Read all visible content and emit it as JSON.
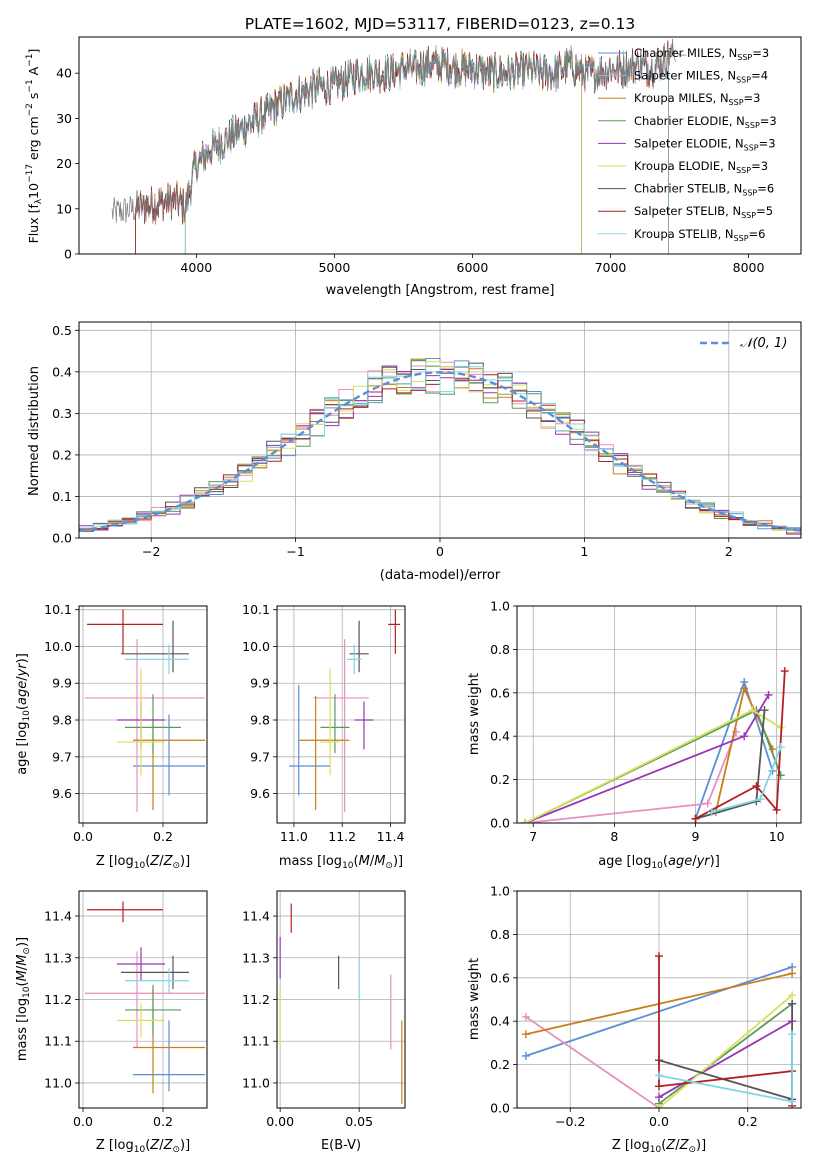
{
  "colors": {
    "chabrier_miles": "#5b8fd8",
    "salpeter_miles": "#e98fc2",
    "kroupa_miles": "#c87f1a",
    "chabrier_elodie": "#5c9a5c",
    "salpeter_elodie": "#9a35b4",
    "kroupa_elodie": "#d8e05a",
    "chabrier_stelib": "#555555",
    "salpeter_stelib": "#b22020",
    "kroupa_stelib": "#7fd6e6",
    "normal_curve": "#5b8fd8",
    "grid": "#b0b0b0"
  },
  "chart_data": [
    {
      "type": "line",
      "title": "PLATE=1602, MJD=53117, FIBERID=0123, z=0.13",
      "xlabel": "wavelength [Angstrom, rest frame]",
      "ylabel": "Flux [fλ10⁻¹⁷ erg cm⁻² s⁻¹ A⁻¹]",
      "xlim": [
        3150,
        8380
      ],
      "ylim": [
        0,
        48
      ],
      "xticks": [
        "4000",
        "5000",
        "6000",
        "7000",
        "8000"
      ],
      "yticks": [
        "0",
        "10",
        "20",
        "30",
        "40"
      ],
      "legend_position": "right",
      "legend": [
        "Chabrier MILES, N_SSP=3",
        "Salpeter MILES, N_SSP=4",
        "Kroupa MILES, N_SSP=3",
        "Chabrier ELODIE, N_SSP=3",
        "Salpeter ELODIE, N_SSP=3",
        "Kroupa ELODIE, N_SSP=3",
        "Chabrier STELIB, N_SSP=6",
        "Salpeter STELIB, N_SSP=5",
        "Kroupa STELIB, N_SSP=6"
      ],
      "continuum": {
        "x": [
          3390,
          3550,
          3700,
          3850,
          3920,
          3990,
          4100,
          4200,
          4300,
          4400,
          4500,
          4600,
          4700,
          4800,
          4900,
          5000,
          5100,
          5200,
          5300,
          5400,
          5500,
          5600,
          5700,
          5800,
          5900,
          6000,
          6100,
          6200,
          6300,
          6400,
          6500,
          6600,
          6700,
          6800,
          6900,
          7000,
          7100,
          7200,
          7300,
          7400,
          7470
        ],
        "y": [
          9,
          10,
          11,
          12,
          10,
          19,
          23,
          25,
          27,
          29,
          31,
          33,
          35,
          36,
          37,
          37,
          39,
          40,
          40,
          40,
          41,
          41,
          42,
          42,
          41,
          41,
          40,
          40,
          40,
          41,
          40,
          40,
          42,
          40,
          40,
          41,
          41,
          42,
          41,
          43,
          45
        ]
      },
      "model_range": {
        "x": [
          3550,
          7420
        ],
        "y_floor": 0
      },
      "data_extension": {
        "x": [
          7420,
          7470,
          7500,
          7550
        ],
        "y": [
          43,
          45,
          44,
          44
        ]
      }
    },
    {
      "type": "histogram",
      "xlabel": "(data-model)/error",
      "ylabel": "Normed distribution",
      "xlim": [
        -2.5,
        2.5
      ],
      "ylim": [
        0,
        0.52
      ],
      "xticks": [
        "−2",
        "−1",
        "0",
        "1",
        "2"
      ],
      "yticks": [
        "0.0",
        "0.1",
        "0.2",
        "0.3",
        "0.4",
        "0.5"
      ],
      "legend": [
        "𝒩(0, 1)"
      ],
      "legend_position": "top-right",
      "bin_width": 0.1
    },
    {
      "type": "errorbar",
      "xlabel": "Z [log₁₀(Z/Z⊙)]",
      "ylabel": "age  [log₁₀(age/yr)]",
      "xlim": [
        -0.01,
        0.31
      ],
      "ylim": [
        9.52,
        10.11
      ],
      "xticks": [
        "0.0",
        "0.2"
      ],
      "yticks": [
        "9.6",
        "9.7",
        "9.8",
        "9.9",
        "10.0",
        "10.1"
      ],
      "points": [
        {
          "series": "chabrier_miles",
          "x": 0.215,
          "y": 9.675,
          "xerr": [
            0.09,
            0.09
          ],
          "yerr": [
            0.08,
            0.14
          ]
        },
        {
          "series": "salpeter_miles",
          "x": 0.135,
          "y": 9.86,
          "xerr": [
            0.13,
            0.17
          ],
          "yerr": [
            0.31,
            0.16
          ]
        },
        {
          "series": "kroupa_miles",
          "x": 0.175,
          "y": 9.745,
          "xerr": [
            0.05,
            0.13
          ],
          "yerr": [
            0.19,
            0.06
          ]
        },
        {
          "series": "chabrier_elodie",
          "x": 0.175,
          "y": 9.78,
          "xerr": [
            0.07,
            0.07
          ],
          "yerr": [
            0.07,
            0.09
          ]
        },
        {
          "series": "salpeter_elodie",
          "x": 0.145,
          "y": 9.8,
          "xerr": [
            0.06,
            0.06
          ],
          "yerr": [
            0.08,
            0.05
          ]
        },
        {
          "series": "kroupa_elodie",
          "x": 0.145,
          "y": 9.74,
          "xerr": [
            0.06,
            0.06
          ],
          "yerr": [
            0.09,
            0.2
          ]
        },
        {
          "series": "chabrier_stelib",
          "x": 0.225,
          "y": 9.98,
          "xerr": [
            0.13,
            0.04
          ],
          "yerr": [
            0.05,
            0.09
          ]
        },
        {
          "series": "salpeter_stelib",
          "x": 0.1,
          "y": 10.06,
          "xerr": [
            0.09,
            0.1
          ],
          "yerr": [
            0.08,
            0.04
          ]
        },
        {
          "series": "kroupa_stelib",
          "x": 0.215,
          "y": 9.965,
          "xerr": [
            0.11,
            0.05
          ],
          "yerr": [
            0.04,
            0.04
          ]
        }
      ]
    },
    {
      "type": "errorbar",
      "xlabel": "mass [log₁₀(M/M⊙)]",
      "ylabel": "",
      "xlim": [
        10.93,
        11.46
      ],
      "ylim": [
        9.52,
        10.11
      ],
      "xticks": [
        "11.0",
        "11.2",
        "11.4"
      ],
      "yticks": [
        "9.6",
        "9.7",
        "9.8",
        "9.9",
        "10.0",
        "10.1"
      ],
      "points": [
        {
          "series": "chabrier_miles",
          "x": 11.02,
          "y": 9.675,
          "xerr": [
            0.04,
            0.13
          ],
          "yerr": [
            0.08,
            0.22
          ]
        },
        {
          "series": "salpeter_miles",
          "x": 11.21,
          "y": 9.86,
          "xerr": [
            0.13,
            0.1
          ],
          "yerr": [
            0.31,
            0.16
          ]
        },
        {
          "series": "kroupa_miles",
          "x": 11.09,
          "y": 9.745,
          "xerr": [
            0.07,
            0.14
          ],
          "yerr": [
            0.19,
            0.12
          ]
        },
        {
          "series": "chabrier_elodie",
          "x": 11.17,
          "y": 9.78,
          "xerr": [
            0.06,
            0.06
          ],
          "yerr": [
            0.07,
            0.09
          ]
        },
        {
          "series": "salpeter_elodie",
          "x": 11.29,
          "y": 9.8,
          "xerr": [
            0.04,
            0.04
          ],
          "yerr": [
            0.08,
            0.05
          ]
        },
        {
          "series": "kroupa_elodie",
          "x": 11.15,
          "y": 9.74,
          "xerr": [
            0.04,
            0.04
          ],
          "yerr": [
            0.09,
            0.2
          ]
        },
        {
          "series": "chabrier_stelib",
          "x": 11.27,
          "y": 9.98,
          "xerr": [
            0.04,
            0.04
          ],
          "yerr": [
            0.05,
            0.09
          ]
        },
        {
          "series": "salpeter_stelib",
          "x": 11.42,
          "y": 10.06,
          "xerr": [
            0.03,
            0.02
          ],
          "yerr": [
            0.08,
            0.04
          ]
        },
        {
          "series": "kroupa_stelib",
          "x": 11.25,
          "y": 9.965,
          "xerr": [
            0.03,
            0.03
          ],
          "yerr": [
            0.04,
            0.04
          ]
        }
      ]
    },
    {
      "type": "line",
      "xlabel": "age  [log₁₀(age/yr)]",
      "ylabel": "mass weight",
      "xlim": [
        6.8,
        10.3
      ],
      "ylim": [
        0,
        1
      ],
      "xticks": [
        "7",
        "8",
        "9",
        "10"
      ],
      "yticks": [
        "0.0",
        "0.2",
        "0.4",
        "0.6",
        "0.8",
        "1.0"
      ],
      "series": [
        {
          "key": "chabrier_miles",
          "x": [
            9.0,
            9.6,
            9.95
          ],
          "y": [
            0.02,
            0.65,
            0.24
          ]
        },
        {
          "key": "salpeter_miles",
          "x": [
            6.9,
            9.15,
            9.5
          ],
          "y": [
            0.0,
            0.09,
            0.42
          ]
        },
        {
          "key": "kroupa_miles",
          "x": [
            9.25,
            9.6,
            9.95
          ],
          "y": [
            0.05,
            0.62,
            0.34
          ]
        },
        {
          "key": "chabrier_elodie",
          "x": [
            6.9,
            9.75,
            10.05
          ],
          "y": [
            0.0,
            0.52,
            0.22
          ]
        },
        {
          "key": "salpeter_elodie",
          "x": [
            6.9,
            9.6,
            9.9
          ],
          "y": [
            0.0,
            0.4,
            0.59
          ]
        },
        {
          "key": "kroupa_elodie",
          "x": [
            6.9,
            9.7,
            10.05
          ],
          "y": [
            0.0,
            0.52,
            0.44
          ]
        },
        {
          "key": "chabrier_stelib",
          "x": [
            9.0,
            9.75,
            9.85
          ],
          "y": [
            0.02,
            0.1,
            0.52
          ]
        },
        {
          "key": "salpeter_stelib",
          "x": [
            9.0,
            9.75,
            10.0,
            10.1
          ],
          "y": [
            0.02,
            0.17,
            0.06,
            0.7
          ]
        },
        {
          "key": "kroupa_stelib",
          "x": [
            9.2,
            9.8,
            10.05
          ],
          "y": [
            0.05,
            0.11,
            0.35
          ]
        }
      ]
    },
    {
      "type": "errorbar",
      "xlabel": "Z [log₁₀(Z/Z⊙)]",
      "ylabel": "mass [log₁₀(M/M⊙)]",
      "xlim": [
        -0.01,
        0.31
      ],
      "ylim": [
        10.94,
        11.46
      ],
      "xticks": [
        "0.0",
        "0.2"
      ],
      "yticks": [
        "11.0",
        "11.1",
        "11.2",
        "11.3",
        "11.4"
      ],
      "points": [
        {
          "series": "chabrier_miles",
          "x": 0.215,
          "y": 11.02,
          "xerr": [
            0.09,
            0.09
          ],
          "yerr": [
            0.04,
            0.13
          ]
        },
        {
          "series": "salpeter_miles",
          "x": 0.135,
          "y": 11.215,
          "xerr": [
            0.13,
            0.17
          ],
          "yerr": [
            0.13,
            0.1
          ]
        },
        {
          "series": "kroupa_miles",
          "x": 0.175,
          "y": 11.085,
          "xerr": [
            0.05,
            0.13
          ],
          "yerr": [
            0.11,
            0.14
          ]
        },
        {
          "series": "chabrier_elodie",
          "x": 0.175,
          "y": 11.175,
          "xerr": [
            0.07,
            0.07
          ],
          "yerr": [
            0.06,
            0.06
          ]
        },
        {
          "series": "salpeter_elodie",
          "x": 0.145,
          "y": 11.285,
          "xerr": [
            0.06,
            0.06
          ],
          "yerr": [
            0.04,
            0.04
          ]
        },
        {
          "series": "kroupa_elodie",
          "x": 0.145,
          "y": 11.15,
          "xerr": [
            0.06,
            0.06
          ],
          "yerr": [
            0.04,
            0.04
          ]
        },
        {
          "series": "chabrier_stelib",
          "x": 0.225,
          "y": 11.265,
          "xerr": [
            0.13,
            0.04
          ],
          "yerr": [
            0.04,
            0.04
          ]
        },
        {
          "series": "salpeter_stelib",
          "x": 0.1,
          "y": 11.415,
          "xerr": [
            0.09,
            0.1
          ],
          "yerr": [
            0.03,
            0.02
          ]
        },
        {
          "series": "kroupa_stelib",
          "x": 0.215,
          "y": 11.245,
          "xerr": [
            0.11,
            0.05
          ],
          "yerr": [
            0.03,
            0.03
          ]
        }
      ]
    },
    {
      "type": "errorbar",
      "xlabel": "E(B-V)",
      "ylabel": "",
      "xlim": [
        -0.002,
        0.079
      ],
      "ylim": [
        10.94,
        11.46
      ],
      "xticks": [
        "0.00",
        "0.05"
      ],
      "yticks": [
        "11.0",
        "11.1",
        "11.2",
        "11.3",
        "11.4"
      ],
      "points": [
        {
          "series": "kroupa_elodie",
          "x": 0.0,
          "y": 11.16,
          "xerr": [
            0,
            0
          ],
          "yerr": [
            0.07,
            0.07
          ]
        },
        {
          "series": "salpeter_elodie",
          "x": 0.0,
          "y": 11.3,
          "xerr": [
            0,
            0
          ],
          "yerr": [
            0.05,
            0.05
          ]
        },
        {
          "series": "salpeter_stelib",
          "x": 0.007,
          "y": 11.395,
          "xerr": [
            0,
            0
          ],
          "yerr": [
            0.035,
            0.035
          ]
        },
        {
          "series": "chabrier_stelib",
          "x": 0.037,
          "y": 11.265,
          "xerr": [
            0,
            0
          ],
          "yerr": [
            0.04,
            0.04
          ]
        },
        {
          "series": "kroupa_stelib",
          "x": 0.05,
          "y": 11.25,
          "xerr": [
            0,
            0
          ],
          "yerr": [
            0.05,
            0.05
          ]
        },
        {
          "series": "salpeter_miles",
          "x": 0.07,
          "y": 11.17,
          "xerr": [
            0,
            0
          ],
          "yerr": [
            0.09,
            0.09
          ]
        },
        {
          "series": "kroupa_miles",
          "x": 0.077,
          "y": 11.05,
          "xerr": [
            0,
            0
          ],
          "yerr": [
            0.1,
            0.1
          ]
        }
      ]
    },
    {
      "type": "line",
      "xlabel": "Z [log₁₀(Z/Z⊙)]",
      "ylabel": "mass weight",
      "xlim": [
        -0.32,
        0.32
      ],
      "ylim": [
        0,
        1
      ],
      "xticks": [
        "−0.2",
        "0.0",
        "0.2"
      ],
      "yticks": [
        "0.0",
        "0.2",
        "0.4",
        "0.6",
        "0.8",
        "1.0"
      ],
      "series": [
        {
          "key": "chabrier_miles",
          "x": [
            -0.3,
            0.3
          ],
          "y": [
            0.24,
            0.65
          ]
        },
        {
          "key": "salpeter_miles",
          "x": [
            -0.3,
            0.0
          ],
          "y": [
            0.42,
            0.0
          ]
        },
        {
          "key": "kroupa_miles",
          "x": [
            -0.3,
            0.3
          ],
          "y": [
            0.34,
            0.62
          ]
        },
        {
          "key": "chabrier_elodie",
          "x": [
            0.0,
            0.3
          ],
          "y": [
            0.02,
            0.48
          ]
        },
        {
          "key": "salpeter_elodie",
          "x": [
            0.0,
            0.3
          ],
          "y": [
            0.05,
            0.4
          ]
        },
        {
          "key": "kroupa_elodie",
          "x": [
            0.0,
            0.3
          ],
          "y": [
            0.0,
            0.52
          ]
        },
        {
          "key": "chabrier_stelib",
          "x": [
            0.0,
            0.3,
            0.3
          ],
          "y": [
            0.22,
            0.04,
            0.48
          ]
        },
        {
          "key": "salpeter_stelib",
          "x": [
            0.0,
            0.0,
            0.3,
            0.3
          ],
          "y": [
            0.7,
            0.1,
            0.17,
            0.01
          ]
        },
        {
          "key": "kroupa_stelib",
          "x": [
            0.0,
            0.3,
            0.3
          ],
          "y": [
            0.15,
            0.03,
            0.34
          ]
        }
      ]
    }
  ]
}
